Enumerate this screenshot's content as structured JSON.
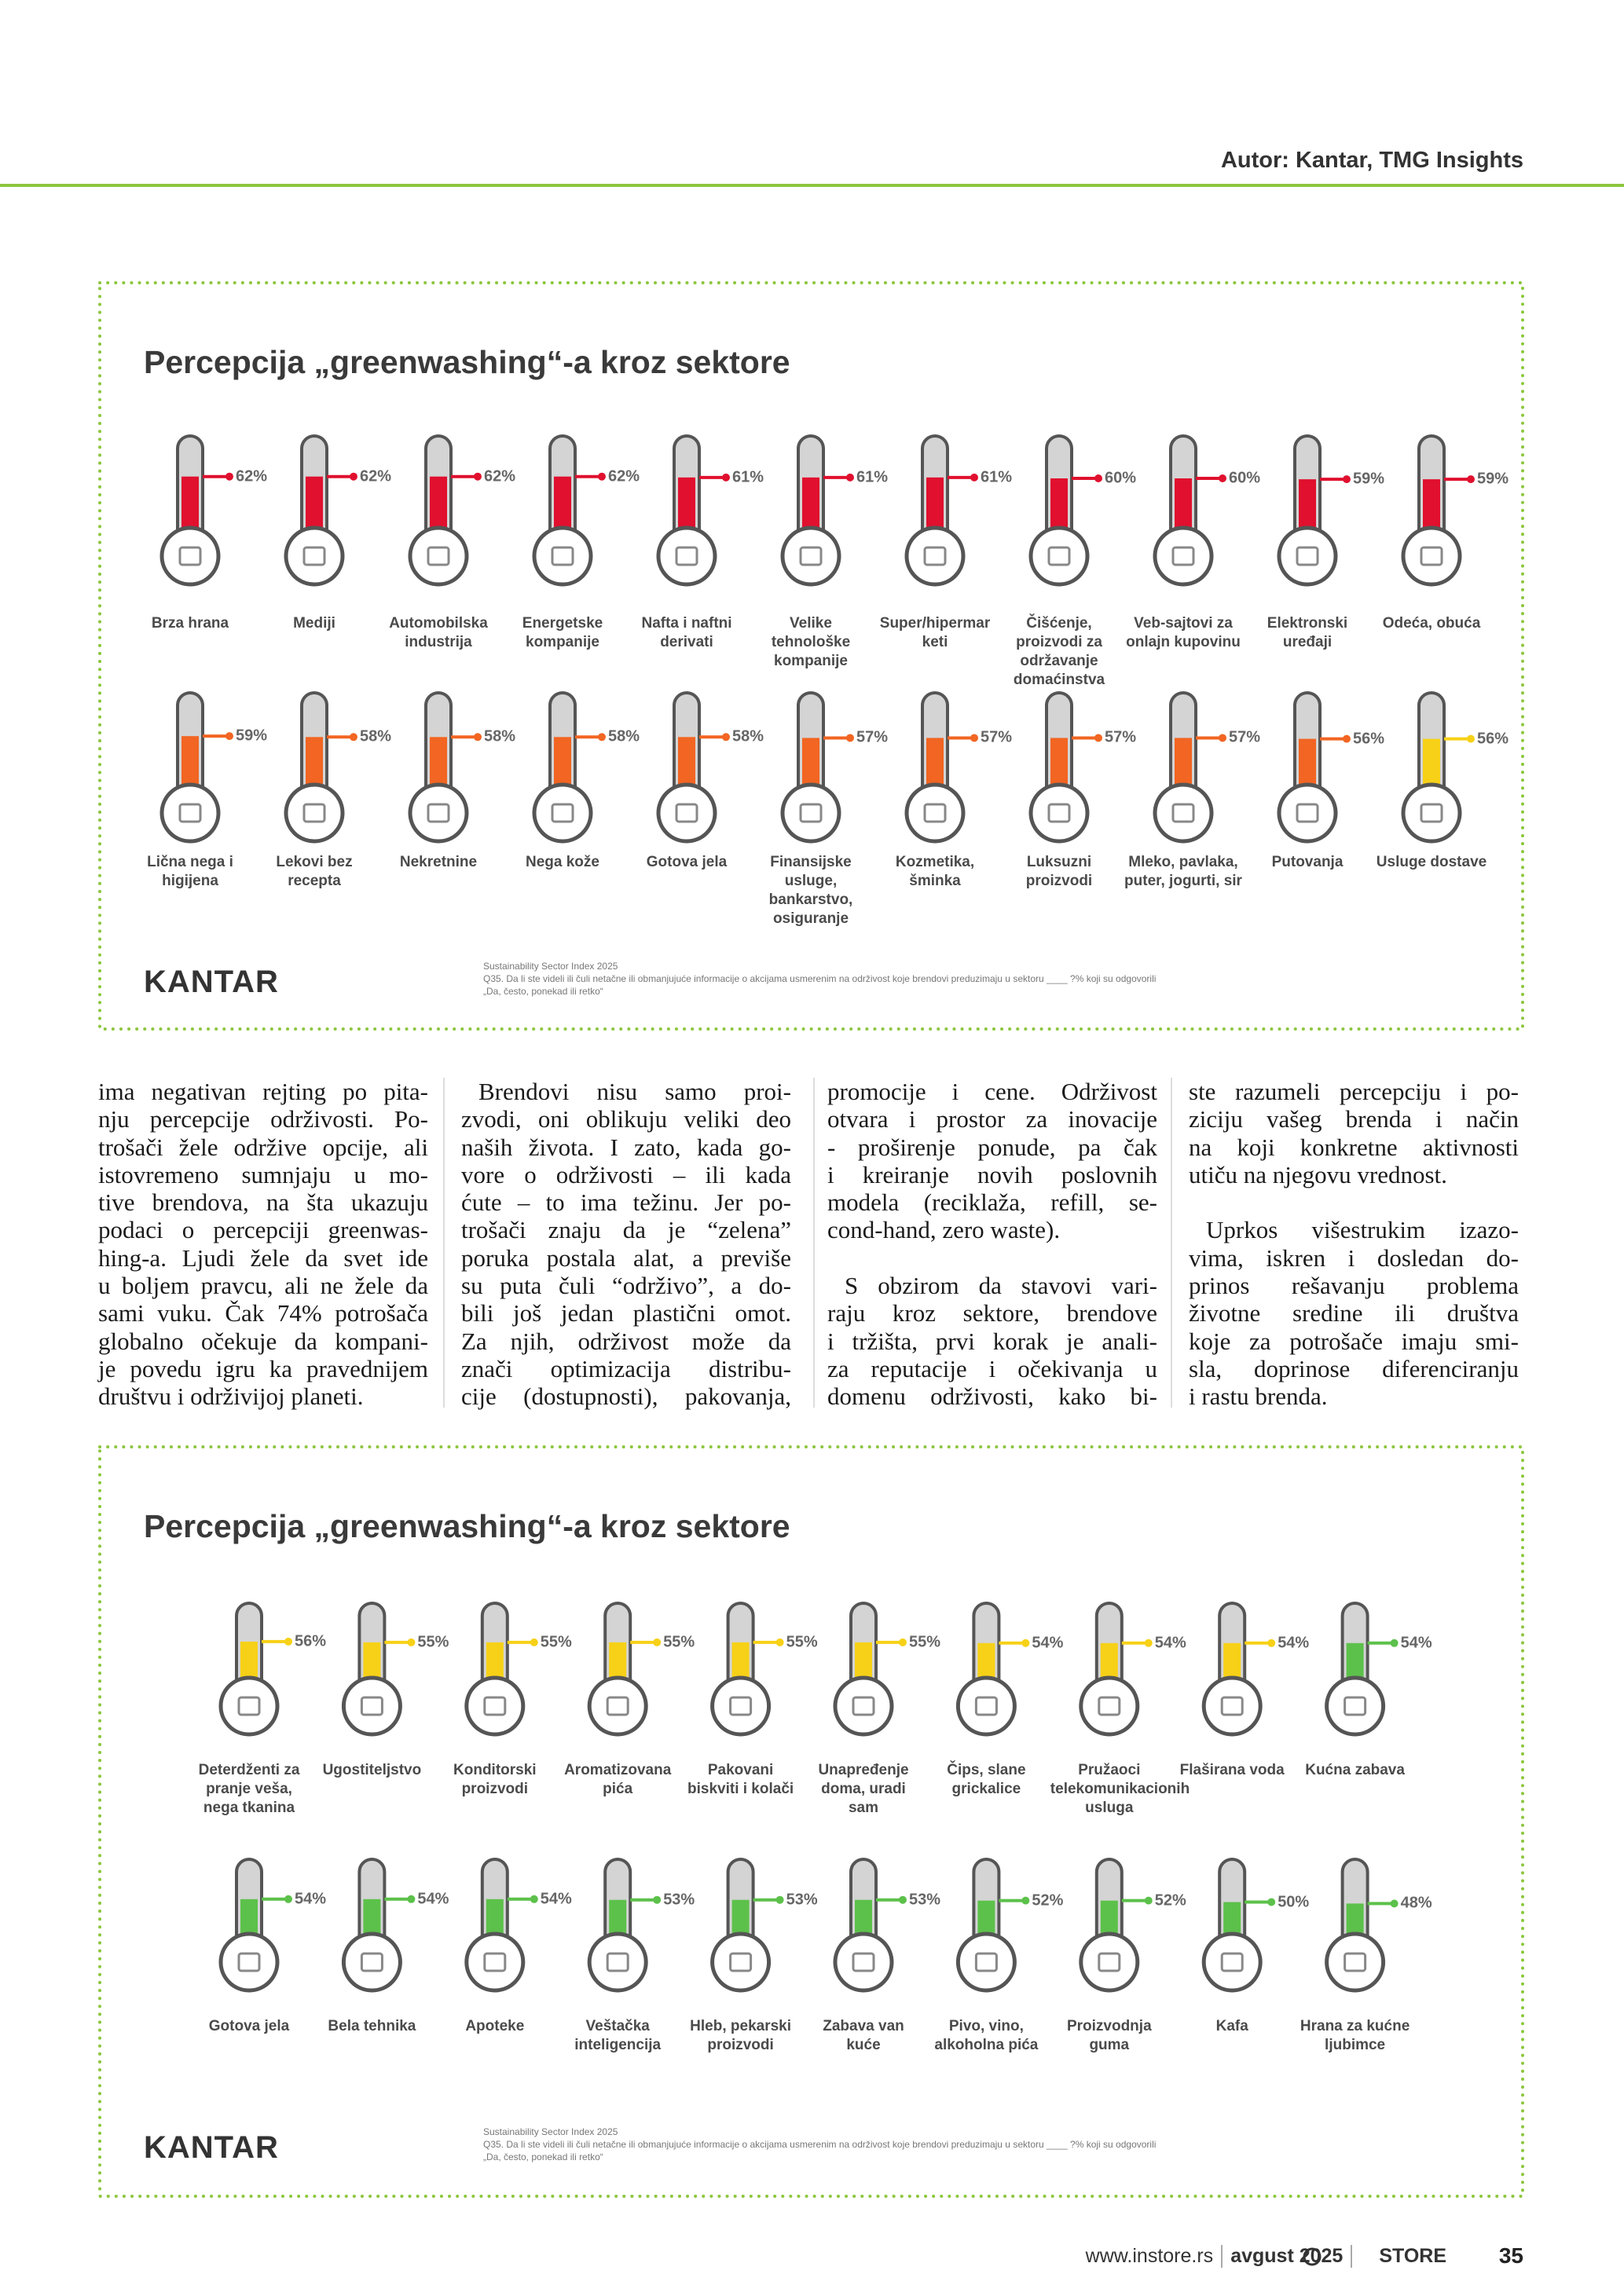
{
  "header": {
    "author": "Autor: Kantar, TMG Insights"
  },
  "infographics": [
    {
      "title": "Percepcija „greenwashing“-a kroz sektore",
      "rows": [
        {
          "items": [
            {
              "label": "Brza hrana",
              "value": 62,
              "value_label": "62%",
              "color": "#e0102e"
            },
            {
              "label": "Mediji",
              "value": 62,
              "value_label": "62%",
              "color": "#e0102e"
            },
            {
              "label": "Automobilska industrija",
              "value": 62,
              "value_label": "62%",
              "color": "#e0102e"
            },
            {
              "label": "Energetske kompanije",
              "value": 62,
              "value_label": "62%",
              "color": "#e0102e"
            },
            {
              "label": "Nafta i naftni derivati",
              "value": 61,
              "value_label": "61%",
              "color": "#e0102e"
            },
            {
              "label": "Velike tehnološke kompanije",
              "value": 61,
              "value_label": "61%",
              "color": "#e0102e"
            },
            {
              "label": "Super/hipermar keti",
              "value": 61,
              "value_label": "61%",
              "color": "#e0102e"
            },
            {
              "label": "Čišćenje, proizvodi za održavanje domaćinstva",
              "value": 60,
              "value_label": "60%",
              "color": "#e0102e"
            },
            {
              "label": "Veb-sajtovi za onlajn kupovinu",
              "value": 60,
              "value_label": "60%",
              "color": "#e0102e"
            },
            {
              "label": "Elektronski uređaji",
              "value": 59,
              "value_label": "59%",
              "color": "#e0102e"
            },
            {
              "label": "Odeća, obuća",
              "value": 59,
              "value_label": "59%",
              "color": "#e0102e"
            }
          ]
        },
        {
          "items": [
            {
              "label": "Lična nega i higijena",
              "value": 59,
              "value_label": "59%",
              "color": "#f26522"
            },
            {
              "label": "Lekovi bez recepta",
              "value": 58,
              "value_label": "58%",
              "color": "#f26522"
            },
            {
              "label": "Nekretnine",
              "value": 58,
              "value_label": "58%",
              "color": "#f26522"
            },
            {
              "label": "Nega kože",
              "value": 58,
              "value_label": "58%",
              "color": "#f26522"
            },
            {
              "label": "Gotova jela",
              "value": 58,
              "value_label": "58%",
              "color": "#f26522"
            },
            {
              "label": "Finansijske usluge, bankarstvo, osiguranje",
              "value": 57,
              "value_label": "57%",
              "color": "#f26522"
            },
            {
              "label": "Kozmetika, šminka",
              "value": 57,
              "value_label": "57%",
              "color": "#f26522"
            },
            {
              "label": "Luksuzni proizvodi",
              "value": 57,
              "value_label": "57%",
              "color": "#f26522"
            },
            {
              "label": "Mleko, pavlaka, puter, jogurti, sir",
              "value": 57,
              "value_label": "57%",
              "color": "#f26522"
            },
            {
              "label": "Putovanja",
              "value": 56,
              "value_label": "56%",
              "color": "#f26522"
            },
            {
              "label": "Usluge dostave",
              "value": 56,
              "value_label": "56%",
              "color": "#f7d117"
            }
          ]
        }
      ],
      "logo": "KANTAR",
      "source_lines": [
        "Sustainability Sector Index 2025",
        "Q35. Da li ste videli ili čuli netačne ili obmanjujuće informacije o akcijama usmerenim na održivost koje brendovi preduzimaju u sektoru ____ ?% koji su odgovorili",
        "„Da, često, ponekad ili retko“"
      ]
    },
    {
      "title": "Percepcija „greenwashing“-a kroz sektore",
      "rows": [
        {
          "items": [
            {
              "label": "Deterdženti za pranje veša, nega tkanina",
              "value": 56,
              "value_label": "56%",
              "color": "#f7d117"
            },
            {
              "label": "Ugostiteljstvo",
              "value": 55,
              "value_label": "55%",
              "color": "#f7d117"
            },
            {
              "label": "Konditorski proizvodi",
              "value": 55,
              "value_label": "55%",
              "color": "#f7d117"
            },
            {
              "label": "Aromatizovana pića",
              "value": 55,
              "value_label": "55%",
              "color": "#f7d117"
            },
            {
              "label": "Pakovani biskviti i kolači",
              "value": 55,
              "value_label": "55%",
              "color": "#f7d117"
            },
            {
              "label": "Unapređenje doma, uradi sam",
              "value": 55,
              "value_label": "55%",
              "color": "#f7d117"
            },
            {
              "label": "Čips, slane grickalice",
              "value": 54,
              "value_label": "54%",
              "color": "#f7d117"
            },
            {
              "label": "Pružaoci telekomunikacionih usluga",
              "value": 54,
              "value_label": "54%",
              "color": "#f7d117"
            },
            {
              "label": "Flaširana voda",
              "value": 54,
              "value_label": "54%",
              "color": "#f7d117"
            },
            {
              "label": "Kućna zabava",
              "value": 54,
              "value_label": "54%",
              "color": "#5cc14a"
            }
          ]
        },
        {
          "items": [
            {
              "label": "Gotova jela",
              "value": 54,
              "value_label": "54%",
              "color": "#5cc14a"
            },
            {
              "label": "Bela tehnika",
              "value": 54,
              "value_label": "54%",
              "color": "#5cc14a"
            },
            {
              "label": "Apoteke",
              "value": 54,
              "value_label": "54%",
              "color": "#5cc14a"
            },
            {
              "label": "Veštačka inteligencija",
              "value": 53,
              "value_label": "53%",
              "color": "#5cc14a"
            },
            {
              "label": "Hleb, pekarski proizvodi",
              "value": 53,
              "value_label": "53%",
              "color": "#5cc14a"
            },
            {
              "label": "Zabava van kuće",
              "value": 53,
              "value_label": "53%",
              "color": "#5cc14a"
            },
            {
              "label": "Pivo, vino, alkoholna pića",
              "value": 52,
              "value_label": "52%",
              "color": "#5cc14a"
            },
            {
              "label": "Proizvodnja guma",
              "value": 52,
              "value_label": "52%",
              "color": "#5cc14a"
            },
            {
              "label": "Kafa",
              "value": 50,
              "value_label": "50%",
              "color": "#5cc14a"
            },
            {
              "label": "Hrana za kućne ljubimce",
              "value": 48,
              "value_label": "48%",
              "color": "#5cc14a"
            }
          ]
        }
      ],
      "logo": "KANTAR",
      "source_lines": [
        "Sustainability Sector Index 2025",
        "Q35. Da li ste videli ili čuli netačne ili obmanjujuće informacije o akcijama usmerenim na održivost koje brendovi preduzimaju u sektoru ____ ?% koji su odgovorili",
        "„Da, često, ponekad ili retko“"
      ]
    }
  ],
  "article": {
    "columns": [
      {
        "paragraphs": [
          {
            "indent": false,
            "lines": [
              "ima negativan rejting po pita-",
              "nju percepcije održivosti. Po-",
              "trošači žele održive opcije, ali",
              "istovremeno sumnjaju u mo-",
              "tive brendova, na šta ukazuju",
              "podaci o percepciji greenwas-",
              "hing-a. Ljudi žele da svet ide",
              "u boljem pravcu, ali ne žele da",
              "sami vuku. Čak 74% potrošača",
              "globalno očekuje da kompani-",
              "je povedu igru ka pravednijem",
              "društvu i održivijoj planeti."
            ]
          }
        ]
      },
      {
        "paragraphs": [
          {
            "indent": true,
            "lines": [
              "Brendovi nisu samo proi-",
              "zvodi, oni oblikuju veliki deo",
              "naših života. I zato, kada go-",
              "vore o održivosti – ili kada",
              "ćute – to ima težinu. Jer po-",
              "trošači znaju da je “zelena”",
              "poruka postala alat, a previše",
              "su puta čuli “održivo”, a do-",
              "bili još jedan plastični omot.",
              "Za njih, održivost može da",
              "znači optimizacija distribu-",
              "cije (dostupnosti), pakovanja,"
            ]
          }
        ]
      },
      {
        "paragraphs": [
          {
            "indent": false,
            "lines": [
              "promocije i cene. Održivost",
              "otvara i prostor za inovacije",
              "- proširenje ponude, pa čak",
              "i kreiranje novih poslovnih",
              "modela (reciklaža, refill, se-",
              "cond-hand, zero waste)."
            ]
          },
          {
            "indent": true,
            "lines": [
              "S obzirom da stavovi vari-",
              "raju kroz sektore, brendove",
              "i tržišta, prvi korak je anali-",
              "za reputacije i očekivanja u",
              "domenu održivosti, kako bi-"
            ]
          }
        ]
      },
      {
        "paragraphs": [
          {
            "indent": false,
            "lines": [
              "ste razumeli percepciju i po-",
              "ziciju vašeg brenda i način",
              "na koji konkretne aktivnosti",
              "utiču na njegovu vrednost."
            ]
          },
          {
            "indent": true,
            "lines": [
              "Uprkos višestrukim izazo-",
              "vima, iskren i dosledan do-",
              "prinos rešavanju problema",
              "životne sredine ili društva",
              "koje za potrošače imaju smi-",
              "sla, doprinose diferenciranju",
              "i rastu brenda."
            ]
          }
        ]
      }
    ]
  },
  "footer": {
    "url": "www.instore.rs",
    "issue": "avgust 2025",
    "brand": "STORE",
    "page": "35"
  }
}
